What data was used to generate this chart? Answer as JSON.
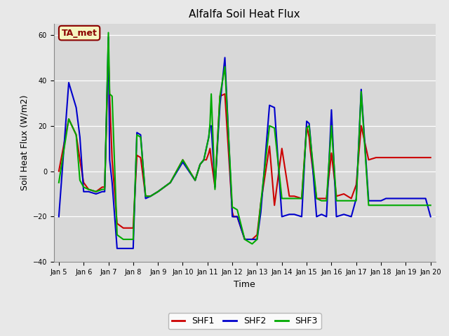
{
  "title": "Alfalfa Soil Heat Flux",
  "ylabel": "Soil Heat Flux (W/m2)",
  "xlabel": "Time",
  "ylim": [
    -40,
    65
  ],
  "xlim": [
    -0.2,
    15.2
  ],
  "fig_facecolor": "#e8e8e8",
  "ax_facecolor": "#d8d8d8",
  "annotation_text": "TA_met",
  "shf1_color": "#cc0000",
  "shf2_color": "#0000cc",
  "shf3_color": "#00aa00",
  "x_labels": [
    "Jan 5",
    "Jan 6",
    "Jan 7",
    "Jan 8",
    "Jan 9",
    "Jan 10",
    "Jan 11",
    "Jan 12",
    "Jan 13",
    "Jan 14",
    "Jan 15",
    "Jan 16",
    "Jan 17",
    "Jan 18",
    "Jan 19",
    "Jan 20"
  ],
  "shf1_x": [
    0.0,
    0.4,
    0.7,
    0.85,
    1.0,
    1.2,
    1.5,
    1.75,
    1.85,
    2.0,
    2.05,
    2.15,
    2.35,
    2.6,
    3.0,
    3.15,
    3.3,
    3.5,
    3.7,
    4.0,
    4.5,
    5.0,
    5.5,
    5.7,
    5.85,
    5.95,
    6.05,
    6.1,
    6.15,
    6.3,
    6.5,
    6.7,
    7.0,
    7.05,
    7.2,
    7.5,
    7.8,
    8.0,
    8.15,
    8.5,
    8.7,
    9.0,
    9.3,
    9.5,
    9.8,
    10.0,
    10.1,
    10.15,
    10.4,
    10.6,
    10.8,
    11.0,
    11.2,
    11.5,
    11.8,
    12.0,
    12.2,
    12.5,
    12.8,
    13.0,
    13.2,
    13.5,
    13.8,
    14.0,
    14.2,
    14.5,
    14.8,
    15.0
  ],
  "shf1_y": [
    0,
    23,
    16,
    5,
    -5,
    -8,
    -9,
    -7,
    -7,
    52,
    33,
    5,
    -23,
    -25,
    -25,
    7,
    6,
    -11,
    -11,
    -9,
    -5,
    5,
    -4,
    3,
    5,
    5,
    8,
    10,
    5,
    -7,
    33,
    34,
    -18,
    -20,
    -20,
    -30,
    -30,
    -28,
    -14,
    11,
    -15,
    10,
    -11,
    -11,
    -12,
    20,
    15,
    9,
    -12,
    -12,
    -12,
    8,
    -11,
    -10,
    -12,
    -6,
    20,
    5,
    6,
    6,
    6,
    6,
    6,
    6,
    6,
    6,
    6,
    6
  ],
  "shf2_x": [
    0.0,
    0.4,
    0.7,
    0.85,
    1.0,
    1.2,
    1.5,
    1.75,
    1.85,
    2.0,
    2.05,
    2.15,
    2.35,
    2.6,
    3.0,
    3.15,
    3.3,
    3.5,
    3.7,
    4.0,
    4.5,
    5.0,
    5.5,
    5.7,
    5.85,
    5.95,
    6.05,
    6.1,
    6.15,
    6.3,
    6.5,
    6.7,
    7.0,
    7.05,
    7.2,
    7.5,
    7.8,
    8.0,
    8.15,
    8.5,
    8.7,
    9.0,
    9.3,
    9.5,
    9.8,
    10.0,
    10.1,
    10.15,
    10.4,
    10.6,
    10.8,
    11.0,
    11.2,
    11.5,
    11.8,
    12.0,
    12.2,
    12.5,
    12.8,
    13.0,
    13.2,
    13.5,
    13.8,
    14.0,
    14.2,
    14.5,
    14.8,
    15.0
  ],
  "shf2_y": [
    -20,
    39,
    28,
    15,
    -9,
    -9,
    -10,
    -9,
    -9,
    59,
    5,
    -5,
    -34,
    -34,
    -34,
    17,
    16,
    -12,
    -11,
    -9,
    -5,
    4,
    -4,
    3,
    5,
    10,
    15,
    20,
    20,
    -7,
    29,
    50,
    -20,
    -20,
    -20,
    -30,
    -30,
    -30,
    -18,
    29,
    28,
    -20,
    -19,
    -19,
    -20,
    22,
    21,
    15,
    -20,
    -19,
    -20,
    27,
    -20,
    -19,
    -20,
    -12,
    36,
    -13,
    -13,
    -13,
    -12,
    -12,
    -12,
    -12,
    -12,
    -12,
    -12,
    -20
  ],
  "shf3_x": [
    0.0,
    0.4,
    0.7,
    0.85,
    1.0,
    1.2,
    1.5,
    1.75,
    1.85,
    2.0,
    2.05,
    2.15,
    2.35,
    2.6,
    3.0,
    3.15,
    3.3,
    3.5,
    3.7,
    4.0,
    4.5,
    5.0,
    5.5,
    5.7,
    5.85,
    5.95,
    6.05,
    6.1,
    6.15,
    6.3,
    6.5,
    6.7,
    7.0,
    7.05,
    7.2,
    7.5,
    7.8,
    8.0,
    8.15,
    8.5,
    8.7,
    9.0,
    9.3,
    9.5,
    9.8,
    10.0,
    10.1,
    10.15,
    10.4,
    10.6,
    10.8,
    11.0,
    11.2,
    11.5,
    11.8,
    12.0,
    12.2,
    12.5,
    12.8,
    13.0,
    13.2,
    13.5,
    13.8,
    14.0,
    14.2,
    14.5,
    14.8,
    15.0
  ],
  "shf3_y": [
    -5,
    23,
    16,
    -4,
    -7,
    -8,
    -9,
    -8,
    -8,
    61,
    34,
    33,
    -28,
    -30,
    -30,
    16,
    15,
    -11,
    -11,
    -9,
    -5,
    5,
    -4,
    3,
    5,
    10,
    15,
    21,
    34,
    -8,
    33,
    46,
    -16,
    -16,
    -17,
    -30,
    -32,
    -30,
    -14,
    20,
    19,
    -12,
    -12,
    -12,
    -12,
    19,
    20,
    14,
    -12,
    -13,
    -13,
    20,
    -13,
    -13,
    -13,
    -13,
    35,
    -15,
    -15,
    -15,
    -15,
    -15,
    -15,
    -15,
    -15,
    -15,
    -15,
    -15
  ],
  "legend_entries": [
    "SHF1",
    "SHF2",
    "SHF3"
  ],
  "linewidth": 1.5,
  "title_fontsize": 11,
  "label_fontsize": 9,
  "tick_fontsize": 7,
  "legend_fontsize": 9
}
